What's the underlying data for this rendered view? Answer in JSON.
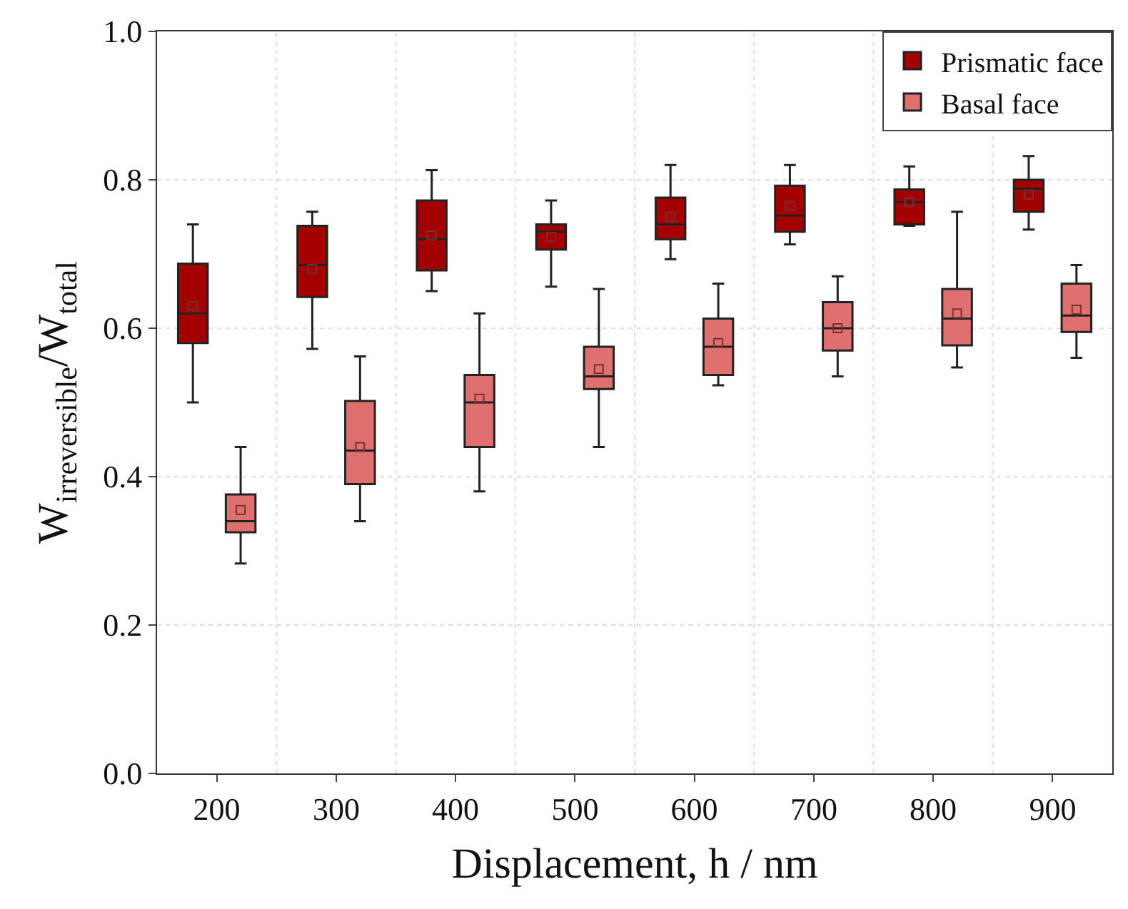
{
  "chart_data": {
    "type": "box",
    "xlabel": "Displacement, h / nm",
    "ylabel": "W$_{irreversible}$/W$_{total}$",
    "categories": [
      "200",
      "300",
      "400",
      "500",
      "600",
      "700",
      "800",
      "900"
    ],
    "ylim": [
      0,
      1.0
    ],
    "yticks": [
      {
        "value": 0,
        "label": "0.0"
      },
      0.2,
      0.4,
      0.6,
      0.8,
      {
        "value": 1.0,
        "label": "1.0"
      }
    ],
    "grid": true,
    "legend": "top right",
    "marker": "square",
    "series": [
      {
        "name": "Prismatic face",
        "color": "#a50000",
        "boxes": [
          {
            "low": 0.5,
            "q1": 0.58,
            "median": 0.62,
            "q3": 0.687,
            "high": 0.74,
            "mean": 0.63
          },
          {
            "low": 0.572,
            "q1": 0.642,
            "median": 0.685,
            "q3": 0.738,
            "high": 0.757,
            "mean": 0.68
          },
          {
            "low": 0.65,
            "q1": 0.678,
            "median": 0.72,
            "q3": 0.772,
            "high": 0.813,
            "mean": 0.725
          },
          {
            "low": 0.656,
            "q1": 0.706,
            "median": 0.73,
            "q3": 0.74,
            "high": 0.772,
            "mean": 0.723
          },
          {
            "low": 0.693,
            "q1": 0.72,
            "median": 0.74,
            "q3": 0.776,
            "high": 0.82,
            "mean": 0.75
          },
          {
            "low": 0.713,
            "q1": 0.73,
            "median": 0.752,
            "q3": 0.792,
            "high": 0.82,
            "mean": 0.765
          },
          {
            "low": 0.738,
            "q1": 0.74,
            "median": 0.77,
            "q3": 0.787,
            "high": 0.818,
            "mean": 0.77
          },
          {
            "low": 0.733,
            "q1": 0.757,
            "median": 0.788,
            "q3": 0.8,
            "high": 0.832,
            "mean": 0.78
          }
        ]
      },
      {
        "name": "Basal face",
        "color": "#e07070",
        "boxes": [
          {
            "low": 0.283,
            "q1": 0.325,
            "median": 0.34,
            "q3": 0.376,
            "high": 0.44,
            "mean": 0.355
          },
          {
            "low": 0.34,
            "q1": 0.39,
            "median": 0.435,
            "q3": 0.502,
            "high": 0.562,
            "mean": 0.44
          },
          {
            "low": 0.38,
            "q1": 0.44,
            "median": 0.5,
            "q3": 0.537,
            "high": 0.62,
            "mean": 0.505
          },
          {
            "low": 0.44,
            "q1": 0.518,
            "median": 0.535,
            "q3": 0.575,
            "high": 0.653,
            "mean": 0.545
          },
          {
            "low": 0.523,
            "q1": 0.537,
            "median": 0.575,
            "q3": 0.613,
            "high": 0.66,
            "mean": 0.58
          },
          {
            "low": 0.535,
            "q1": 0.57,
            "median": 0.6,
            "q3": 0.635,
            "high": 0.67,
            "mean": 0.6
          },
          {
            "low": 0.547,
            "q1": 0.577,
            "median": 0.613,
            "q3": 0.653,
            "high": 0.757,
            "mean": 0.62
          },
          {
            "low": 0.56,
            "q1": 0.595,
            "median": 0.617,
            "q3": 0.66,
            "high": 0.685,
            "mean": 0.625
          }
        ]
      }
    ]
  }
}
